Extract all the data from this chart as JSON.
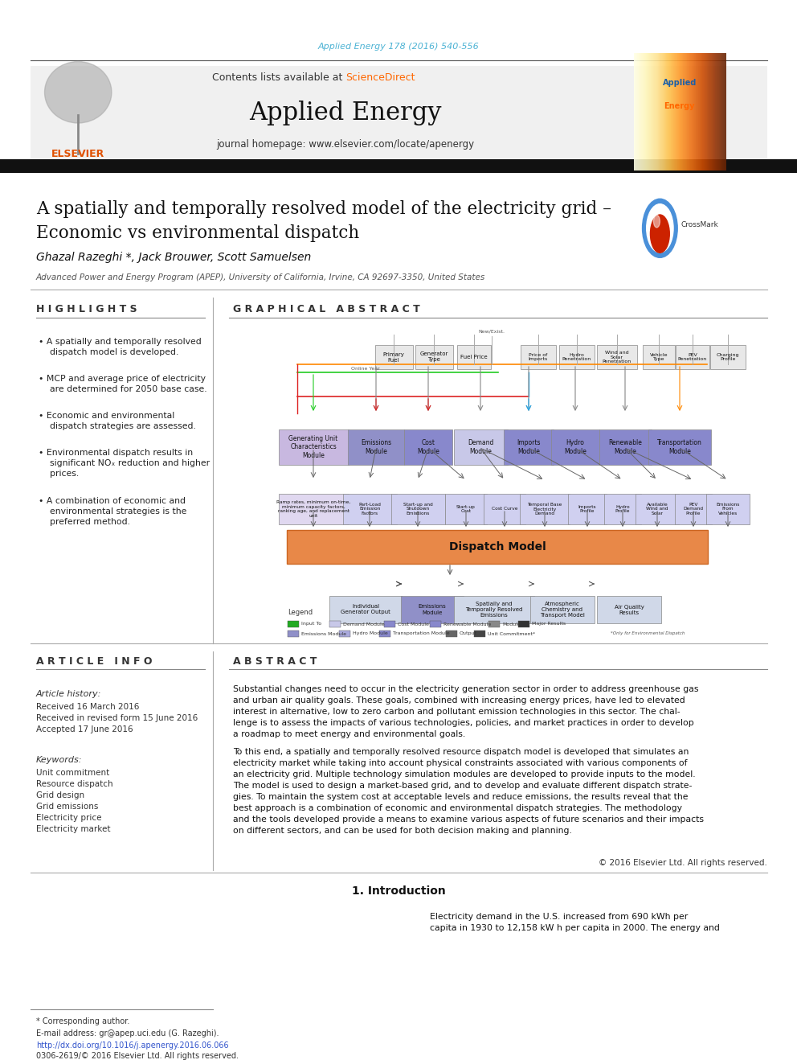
{
  "journal_ref": "Applied Energy 178 (2016) 540-556",
  "journal_ref_color": "#4db3d4",
  "contents_text": "Contents lists available at ",
  "sciencedirect_text": "ScienceDirect",
  "sciencedirect_color": "#ff6600",
  "journal_name": "Applied Energy",
  "journal_homepage": "journal homepage: www.elsevier.com/locate/apenergy",
  "article_title_line1": "A spatially and temporally resolved model of the electricity grid –",
  "article_title_line2": "Economic vs environmental dispatch",
  "authors": "Ghazal Razeghi *, Jack Brouwer, Scott Samuelsen",
  "affiliation": "Advanced Power and Energy Program (APEP), University of California, Irvine, CA 92697-3350, United States",
  "highlights_title": "H I G H L I G H T S",
  "highlights": [
    "A spatially and temporally resolved\n  dispatch model is developed.",
    "MCP and average price of electricity\n  are determined for 2050 base case.",
    "Economic and environmental\n  dispatch strategies are assessed.",
    "Environmental dispatch results in\n  significant NOₓ reduction and higher\n  prices.",
    "A combination of economic and\n  environmental strategies is the\n  preferred method."
  ],
  "graphical_abstract_title": "G R A P H I C A L   A B S T R A C T",
  "article_info_title": "A R T I C L E   I N F O",
  "article_history_title": "Article history:",
  "received": "Received 16 March 2016",
  "received_revised": "Received in revised form 15 June 2016",
  "accepted": "Accepted 17 June 2016",
  "keywords_title": "Keywords:",
  "keywords": [
    "Unit commitment",
    "Resource dispatch",
    "Grid design",
    "Grid emissions",
    "Electricity price",
    "Electricity market"
  ],
  "abstract_title": "A B S T R A C T",
  "abstract_p1": "Substantial changes need to occur in the electricity generation sector in order to address greenhouse gas\nand urban air quality goals. These goals, combined with increasing energy prices, have led to elevated\ninterest in alternative, low to zero carbon and pollutant emission technologies in this sector. The chal-\nlenge is to assess the impacts of various technologies, policies, and market practices in order to develop\na roadmap to meet energy and environmental goals.",
  "abstract_p2": "To this end, a spatially and temporally resolved resource dispatch model is developed that simulates an\nelectricity market while taking into account physical constraints associated with various components of\nan electricity grid. Multiple technology simulation modules are developed to provide inputs to the model.\nThe model is used to design a market-based grid, and to develop and evaluate different dispatch strate-\ngies. To maintain the system cost at acceptable levels and reduce emissions, the results reveal that the\nbest approach is a combination of economic and environmental dispatch strategies. The methodology\nand the tools developed provide a means to examine various aspects of future scenarios and their impacts\non different sectors, and can be used for both decision making and planning.",
  "copyright": "© 2016 Elsevier Ltd. All rights reserved.",
  "intro_title": "1. Introduction",
  "intro_text": "Electricity demand in the U.S. increased from 690 kWh per\ncapita in 1930 to 12,158 kW h per capita in 2000. The energy and",
  "footnote_corresponding": "* Corresponding author.",
  "footnote_email": "E-mail address: gr@apep.uci.edu (G. Razeghi).",
  "doi": "http://dx.doi.org/10.1016/j.apenergy.2016.06.066",
  "issn": "0306-2619/© 2016 Elsevier Ltd. All rights reserved.",
  "bg_color": "#ffffff",
  "header_bg": "#f0f0f0",
  "black_bar_color": "#1a1a1a",
  "separator_color": "#888888",
  "title_color": "#000000",
  "dispatch_model_color": "#e8854a"
}
